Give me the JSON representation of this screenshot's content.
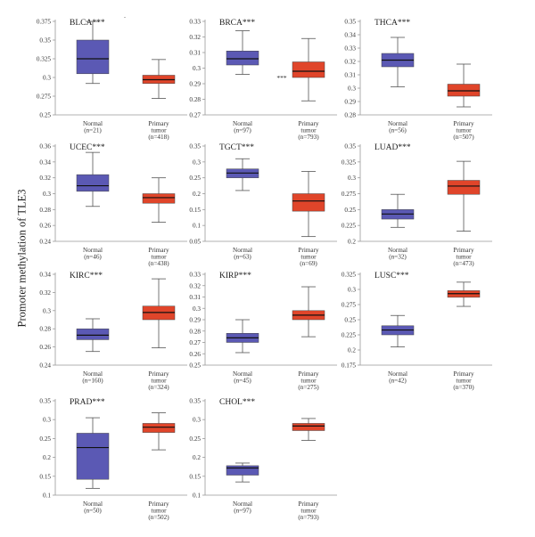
{
  "figure": {
    "ylabel": "Promoter methylation of TLE3"
  },
  "colors": {
    "normal": "#5b59b4",
    "tumor": "#e0452a",
    "median": "#111111",
    "axis": "#999999"
  },
  "chart_data": [
    {
      "type": "box",
      "title": "BLCA***",
      "ylim": [
        0.25,
        0.375
      ],
      "yticks": [
        "0.375",
        "0.35",
        "0.325",
        "0.3",
        "0.275",
        "0.25"
      ],
      "annotation": "·",
      "categories": [
        {
          "label": "Normal",
          "n": "(n=21)",
          "min": 0.292,
          "q1": 0.305,
          "median": 0.325,
          "q3": 0.35,
          "max": 0.375
        },
        {
          "label": "Primary tumor",
          "n": "(n=418)",
          "min": 0.272,
          "q1": 0.292,
          "median": 0.297,
          "q3": 0.303,
          "max": 0.324
        }
      ]
    },
    {
      "type": "box",
      "title": "BRCA***",
      "ylim": [
        0.27,
        0.33
      ],
      "yticks": [
        "0.33",
        "0.32",
        "0.31",
        "0.3",
        "0.29",
        "0.28",
        "0.27"
      ],
      "annotation": "***",
      "categories": [
        {
          "label": "Normal",
          "n": "(n=97)",
          "min": 0.296,
          "q1": 0.302,
          "median": 0.306,
          "q3": 0.311,
          "max": 0.324
        },
        {
          "label": "Primary tumor",
          "n": "(n=793)",
          "min": 0.279,
          "q1": 0.294,
          "median": 0.298,
          "q3": 0.304,
          "max": 0.319
        }
      ]
    },
    {
      "type": "box",
      "title": "THCA***",
      "ylim": [
        0.28,
        0.35
      ],
      "yticks": [
        "0.35",
        "0.34",
        "0.33",
        "0.32",
        "0.31",
        "0.3",
        "0.29",
        "0.28"
      ],
      "categories": [
        {
          "label": "Normal",
          "n": "(n=56)",
          "min": 0.301,
          "q1": 0.316,
          "median": 0.321,
          "q3": 0.326,
          "max": 0.338
        },
        {
          "label": "Primary tumor",
          "n": "(n=507)",
          "min": 0.286,
          "q1": 0.294,
          "median": 0.298,
          "q3": 0.303,
          "max": 0.318
        }
      ]
    },
    {
      "type": "box",
      "title": "UCEC***",
      "ylim": [
        0.24,
        0.36
      ],
      "yticks": [
        "0.36",
        "0.34",
        "0.32",
        "0.3",
        "0.28",
        "0.26",
        "0.24"
      ],
      "categories": [
        {
          "label": "Normal",
          "n": "(n=46)",
          "min": 0.284,
          "q1": 0.303,
          "median": 0.31,
          "q3": 0.324,
          "max": 0.352
        },
        {
          "label": "Primary tumor",
          "n": "(n=438)",
          "min": 0.264,
          "q1": 0.288,
          "median": 0.295,
          "q3": 0.3,
          "max": 0.32
        }
      ]
    },
    {
      "type": "box",
      "title": "TGCT***",
      "ylim": [
        0.05,
        0.35
      ],
      "yticks": [
        "0.35",
        "0.3",
        "0.25",
        "0.2",
        "0.15",
        "0.1",
        "0.05"
      ],
      "categories": [
        {
          "label": "Normal",
          "n": "(n=63)",
          "min": 0.21,
          "q1": 0.25,
          "median": 0.265,
          "q3": 0.278,
          "max": 0.31
        },
        {
          "label": "Primary tumor",
          "n": "(n=69)",
          "min": 0.065,
          "q1": 0.145,
          "median": 0.177,
          "q3": 0.2,
          "max": 0.27
        }
      ]
    },
    {
      "type": "box",
      "title": "LUAD***",
      "ylim": [
        0.2,
        0.35
      ],
      "yticks": [
        "0.35",
        "0.325",
        "0.3",
        "0.275",
        "0.25",
        "0.225",
        "0.2"
      ],
      "categories": [
        {
          "label": "Normal",
          "n": "(n=32)",
          "min": 0.222,
          "q1": 0.235,
          "median": 0.243,
          "q3": 0.25,
          "max": 0.274
        },
        {
          "label": "Primary tumor",
          "n": "(n=473)",
          "min": 0.216,
          "q1": 0.274,
          "median": 0.287,
          "q3": 0.296,
          "max": 0.326
        }
      ]
    },
    {
      "type": "box",
      "title": "KIRC***",
      "ylim": [
        0.24,
        0.34
      ],
      "yticks": [
        "0.34",
        "0.32",
        "0.3",
        "0.28",
        "0.26",
        "0.24"
      ],
      "categories": [
        {
          "label": "Normal",
          "n": "(n=160)",
          "min": 0.255,
          "q1": 0.268,
          "median": 0.273,
          "q3": 0.28,
          "max": 0.291
        },
        {
          "label": "Primary tumor",
          "n": "(n=324)",
          "min": 0.259,
          "q1": 0.29,
          "median": 0.298,
          "q3": 0.305,
          "max": 0.335
        }
      ]
    },
    {
      "type": "box",
      "title": "KIRP***",
      "ylim": [
        0.25,
        0.33
      ],
      "yticks": [
        "0.33",
        "0.32",
        "0.31",
        "0.3",
        "0.29",
        "0.28",
        "0.27",
        "0.26",
        "0.25"
      ],
      "categories": [
        {
          "label": "Normal",
          "n": "(n=45)",
          "min": 0.261,
          "q1": 0.27,
          "median": 0.274,
          "q3": 0.278,
          "max": 0.29
        },
        {
          "label": "Primary tumor",
          "n": "(n=275)",
          "min": 0.275,
          "q1": 0.29,
          "median": 0.294,
          "q3": 0.298,
          "max": 0.319
        }
      ]
    },
    {
      "type": "box",
      "title": "LUSC***",
      "ylim": [
        0.175,
        0.325
      ],
      "yticks": [
        "0.325",
        "0.3",
        "0.275",
        "0.25",
        "0.225",
        "0.2",
        "0.175"
      ],
      "categories": [
        {
          "label": "Normal",
          "n": "(n=42)",
          "min": 0.205,
          "q1": 0.225,
          "median": 0.233,
          "q3": 0.24,
          "max": 0.257
        },
        {
          "label": "Primary tumor",
          "n": "(n=370)",
          "min": 0.272,
          "q1": 0.287,
          "median": 0.293,
          "q3": 0.298,
          "max": 0.312
        }
      ]
    },
    {
      "type": "box",
      "title": "PRAD***",
      "ylim": [
        0.1,
        0.35
      ],
      "yticks": [
        "0.35",
        "0.3",
        "0.25",
        "0.2",
        "0.15",
        "0.1"
      ],
      "categories": [
        {
          "label": "Normal",
          "n": "(n=50)",
          "min": 0.118,
          "q1": 0.142,
          "median": 0.226,
          "q3": 0.264,
          "max": 0.305
        },
        {
          "label": "Primary tumor",
          "n": "(n=502)",
          "min": 0.22,
          "q1": 0.266,
          "median": 0.28,
          "q3": 0.29,
          "max": 0.318
        }
      ]
    },
    {
      "type": "box",
      "title": "CHOL***",
      "ylim": [
        0.1,
        0.35
      ],
      "yticks": [
        "0.35",
        "0.3",
        "0.25",
        "0.2",
        "0.15",
        "0.1"
      ],
      "categories": [
        {
          "label": "Normal",
          "n": "(n=97)",
          "min": 0.135,
          "q1": 0.153,
          "median": 0.172,
          "q3": 0.178,
          "max": 0.185
        },
        {
          "label": "Primary tumor",
          "n": "(n=793)",
          "min": 0.245,
          "q1": 0.271,
          "median": 0.283,
          "q3": 0.29,
          "max": 0.303
        }
      ]
    }
  ]
}
